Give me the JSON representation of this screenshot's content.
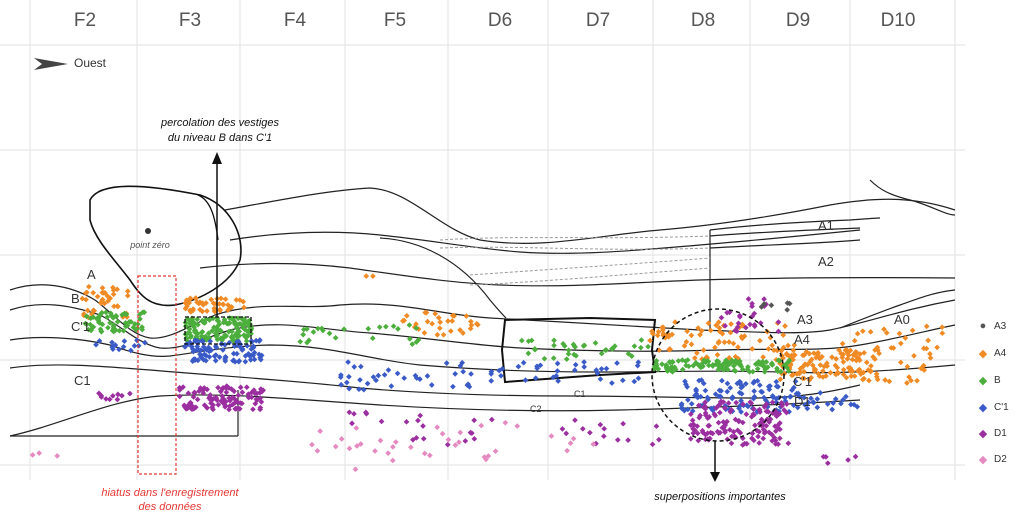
{
  "grid_columns": [
    "F2",
    "F3",
    "F4",
    "F5",
    "D6",
    "D7",
    "D8",
    "D9",
    "D10"
  ],
  "direction_label": "Ouest",
  "annotations": {
    "percolation_line1": "percolation des vestiges",
    "percolation_line2": "du niveau B dans C'1",
    "point_zero": "point zéro",
    "hiatus_line1": "hiatus dans l'enregistrement",
    "hiatus_line2": "des données",
    "superpositions": "superpositions importantes"
  },
  "layer_labels": {
    "A": "A",
    "B": "B",
    "C1prime": "C'1",
    "C1": "C1",
    "A1": "A1",
    "A2": "A2",
    "A3": "A3",
    "A4": "A4",
    "A0": "A0",
    "C1prime_right": "C'1",
    "D1": "D1",
    "C1_small": "C1",
    "C2_small": "C2"
  },
  "legend": [
    {
      "label": "A3",
      "color": "#555555",
      "symbol": "●"
    },
    {
      "label": "A4",
      "color": "#f08a24",
      "symbol": "◆"
    },
    {
      "label": "B",
      "color": "#4cae3c",
      "symbol": "◆"
    },
    {
      "label": "C'1",
      "color": "#3a5bc7",
      "symbol": "◆"
    },
    {
      "label": "D1",
      "color": "#9b2fa0",
      "symbol": "◆"
    },
    {
      "label": "D2",
      "color": "#e48ac0",
      "symbol": "◆"
    }
  ],
  "colors": {
    "A4": "#f08a24",
    "B": "#4cae3c",
    "C1prime": "#3a5bc7",
    "D1": "#9b2fa0",
    "D2": "#e48ac0",
    "A3": "#555555",
    "hiatus": "#e53935",
    "grid": "#e2e2e2"
  }
}
